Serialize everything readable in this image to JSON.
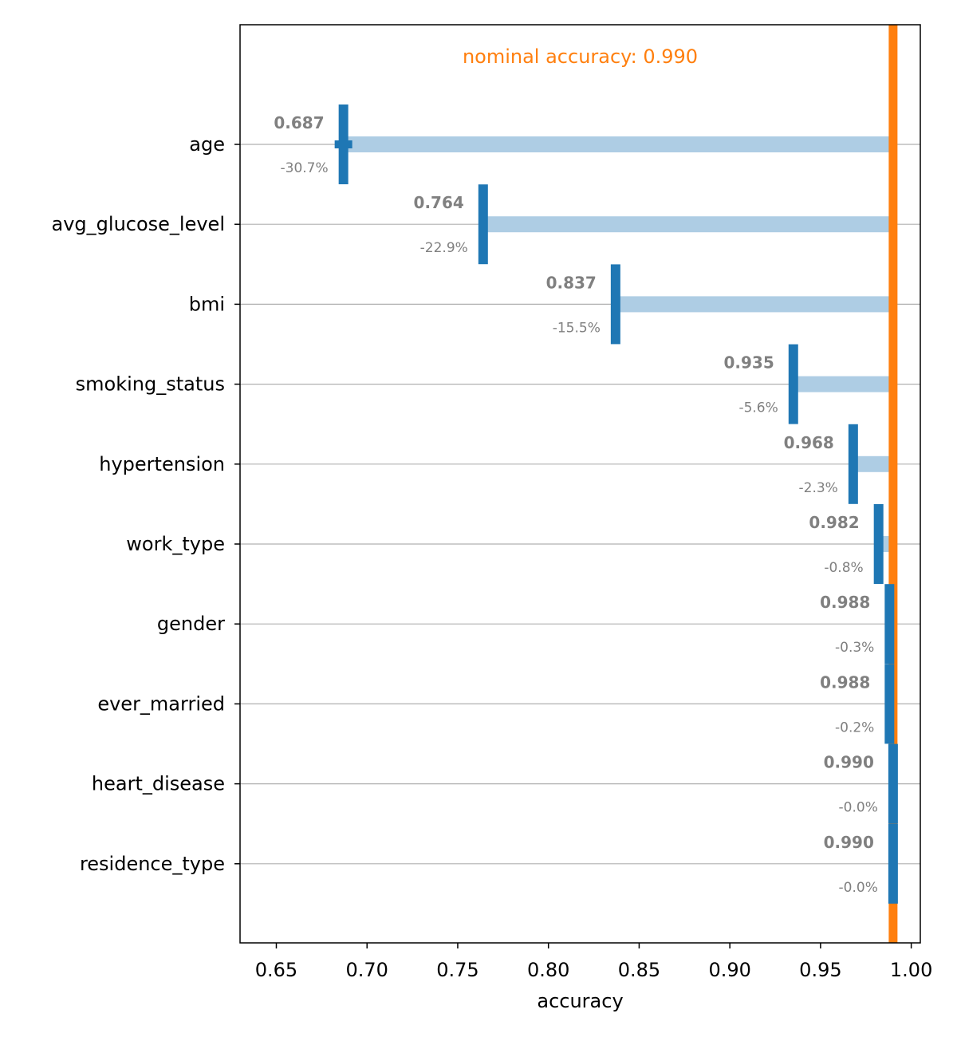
{
  "chart_data": {
    "type": "bar",
    "title": "",
    "xlabel": "accuracy",
    "ylabel": "",
    "xlim": [
      0.63,
      1.005
    ],
    "xticks": [
      "0.65",
      "0.70",
      "0.75",
      "0.80",
      "0.85",
      "0.90",
      "0.95",
      "1.00"
    ],
    "grid": "horizontal",
    "nominal": {
      "value": 0.99,
      "label": "nominal accuracy: 0.990",
      "color": "#ff7f0e"
    },
    "colors": {
      "bar": "#aecde4",
      "marker": "#1f77b4",
      "label": "#808080",
      "grid": "#b0b0b0"
    },
    "categories": [
      "age",
      "avg_glucose_level",
      "bmi",
      "smoking_status",
      "hypertension",
      "work_type",
      "gender",
      "ever_married",
      "heart_disease",
      "residence_type"
    ],
    "values": [
      0.687,
      0.764,
      0.837,
      0.935,
      0.968,
      0.982,
      0.988,
      0.988,
      0.99,
      0.99
    ],
    "value_labels": [
      "0.687",
      "0.764",
      "0.837",
      "0.935",
      "0.968",
      "0.982",
      "0.988",
      "0.988",
      "0.990",
      "0.990"
    ],
    "pct_labels": [
      "-30.7%",
      "-22.9%",
      "-15.5%",
      "-5.6%",
      "-2.3%",
      "-0.8%",
      "-0.3%",
      "-0.2%",
      "-0.0%",
      "-0.0%"
    ]
  }
}
